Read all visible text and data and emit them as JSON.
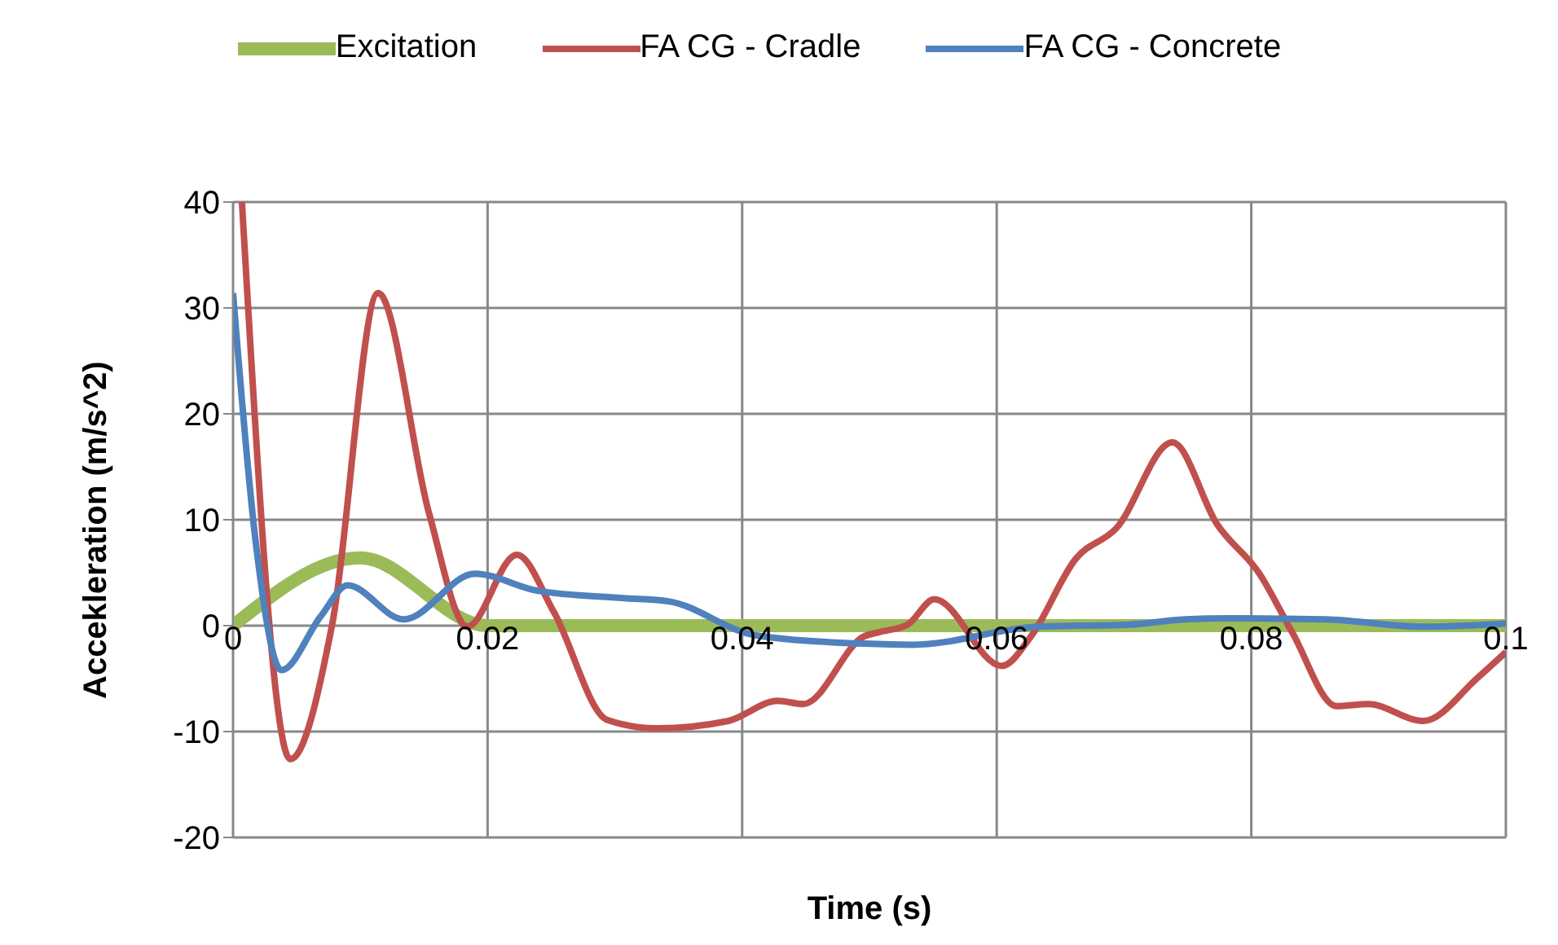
{
  "chart_data": {
    "type": "line",
    "xlabel": "Time (s)",
    "ylabel": "Accekleration (m/s^2)",
    "xlim": [
      0,
      0.1
    ],
    "xticks": [
      0,
      0.02,
      0.04,
      0.06,
      0.08,
      {
        "value": 0.1,
        "label": "0.1"
      }
    ],
    "ylim": [
      -20,
      40
    ],
    "yticks": [
      -20,
      -10,
      0,
      10,
      20,
      30,
      40
    ],
    "grid": true,
    "legend": "top",
    "marker": "none",
    "line_style": "solid",
    "series": [
      {
        "name": "Excitation",
        "color": "#9bbb59",
        "x": [
          0,
          0.01,
          0.02,
          0.1
        ],
        "values": [
          0,
          6.4,
          0,
          0
        ]
      },
      {
        "name": "FA CG - Cradle",
        "color": "#c0504d",
        "x": [
          0.0007,
          0.0045,
          0.0078,
          0.0114,
          0.0154,
          0.0184,
          0.0223,
          0.0252,
          0.0294,
          0.0333,
          0.0389,
          0.0428,
          0.0448,
          0.0496,
          0.0508,
          0.053,
          0.0551,
          0.0604,
          0.0627,
          0.0662,
          0.0694,
          0.0738,
          0.0773,
          0.0807,
          0.0832,
          0.0867,
          0.0892,
          0.0935,
          0.0978,
          0.1
        ],
        "values": [
          40,
          -12.6,
          0.2,
          31.4,
          10.6,
          -0.1,
          6.7,
          1.3,
          -8.9,
          -9.7,
          -9,
          -7.1,
          -7.4,
          -1,
          -0.6,
          0.1,
          2.5,
          -3.8,
          -1,
          6.3,
          9.2,
          17.3,
          9.6,
          4.8,
          -0.6,
          -7.6,
          -7.4,
          -9,
          -4.9,
          -2.5
        ]
      },
      {
        "name": "FA CG - Concrete",
        "color": "#4f81bd",
        "x": [
          0,
          0.0018,
          0.0038,
          0.0069,
          0.009,
          0.0134,
          0.019,
          0.0239,
          0.0307,
          0.0342,
          0.041,
          0.0496,
          0.0534,
          0.0632,
          0.0704,
          0.0748,
          0.0781,
          0.0858,
          0.0935,
          0.1
        ],
        "values": [
          31.4,
          7.7,
          -4.2,
          0.9,
          3.8,
          0.6,
          4.9,
          3.3,
          2.6,
          2.3,
          -0.9,
          -1.7,
          -1.8,
          -0.1,
          0.1,
          0.6,
          0.7,
          0.6,
          -0.1,
          0.2
        ]
      }
    ]
  }
}
